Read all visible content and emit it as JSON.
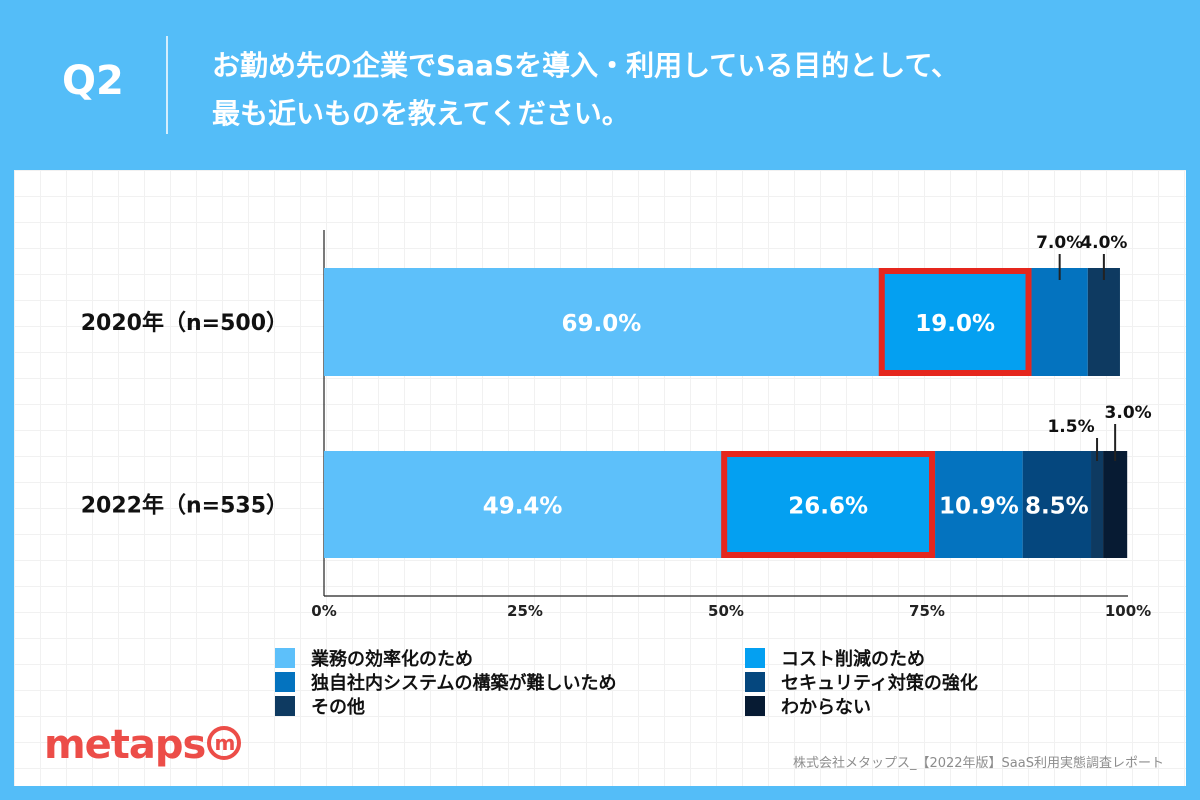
{
  "header": {
    "q_number": "Q2",
    "question_line1": "お勤め先の企業でSaaSを導入・利用している目的として、",
    "question_line2": "最も近いものを教えてください。"
  },
  "chart_data": {
    "type": "bar",
    "orientation": "horizontal",
    "stacked": true,
    "categories": [
      "2020年（n=500）",
      "2022年（n=535）"
    ],
    "series": [
      {
        "name": "業務の効率化のため",
        "values": [
          69.0,
          49.4
        ],
        "labels": [
          "69.0%",
          "49.4%"
        ],
        "color": "#5dc0fa"
      },
      {
        "name": "コスト削減のため",
        "values": [
          19.0,
          26.6
        ],
        "labels": [
          "19.0%",
          "26.6%"
        ],
        "color": "#04a0f1"
      },
      {
        "name": "独自社内システムの構築が難しいため",
        "values": [
          7.0,
          10.9
        ],
        "labels": [
          "7.0%",
          "10.9%"
        ],
        "color": "#0473bf"
      },
      {
        "name": "セキュリティ対策の強化",
        "values": [
          0,
          8.5
        ],
        "labels": [
          "",
          "8.5%"
        ],
        "color": "#05477e"
      },
      {
        "name": "その他",
        "values": [
          4.0,
          1.5
        ],
        "labels": [
          "4.0%",
          "1.5%"
        ],
        "color": "#0e3a61"
      },
      {
        "name": "わからない",
        "values": [
          0,
          3.0
        ],
        "labels": [
          "",
          "3.0%"
        ],
        "color": "#071b33"
      }
    ],
    "highlight_series": "コスト削減のため",
    "highlight_color": "#e5261d",
    "xlim": [
      0,
      100
    ],
    "xticks": [
      "0%",
      "25%",
      "50%",
      "75%",
      "100%"
    ],
    "legend_position": "bottom",
    "grid": false
  },
  "footer": {
    "logo_text": "metaps",
    "logo_mark": "m",
    "source": "株式会社メタップス_【2022年版】SaaS利用実態調査レポート"
  },
  "colors": {
    "background": "#54bdf8",
    "brand": "#ec4d48"
  }
}
